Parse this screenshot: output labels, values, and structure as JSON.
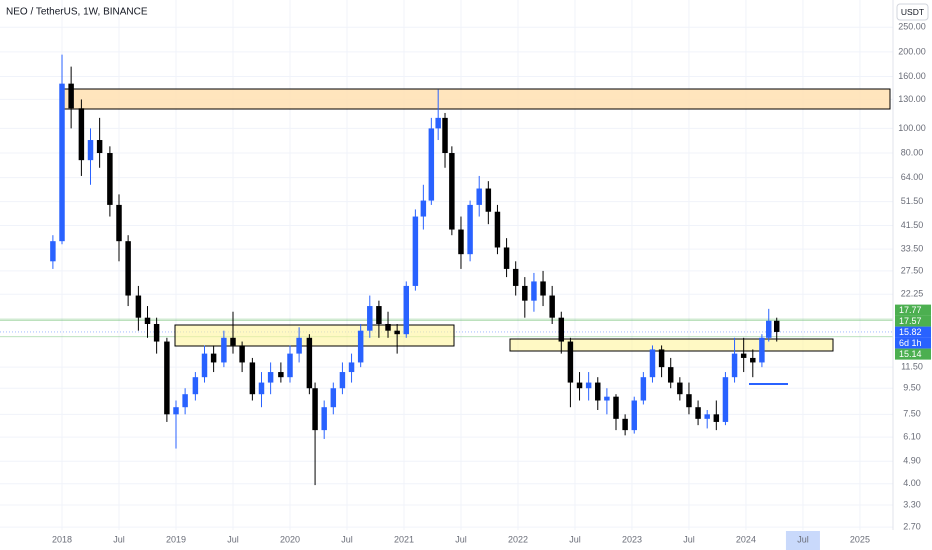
{
  "chart_data": {
    "type": "candlestick",
    "title": "NEO / TetherUS, 1W, BINANCE",
    "currency": "USDT",
    "log_scale": true,
    "grid": true,
    "up_color": "#2962ff",
    "down_color": "#000000",
    "xlim": [
      2017.456,
      2025.29
    ],
    "ylim": [
      2.63,
      320
    ],
    "xticks": [
      2018,
      {
        "value": 2018.5,
        "label": "Jul"
      },
      2019,
      {
        "value": 2019.5,
        "label": "Jul"
      },
      2020,
      {
        "value": 2020.5,
        "label": "Jul"
      },
      2021,
      {
        "value": 2021.5,
        "label": "Jul"
      },
      2022,
      {
        "value": 2022.5,
        "label": "Jul"
      },
      2023,
      {
        "value": 2023.5,
        "label": "Jul"
      },
      2024,
      {
        "value": 2024.5,
        "label": "Jul"
      },
      2025
    ],
    "yticks": [
      {
        "value": 250,
        "label": "250.00"
      },
      {
        "value": 200,
        "label": "200.00"
      },
      {
        "value": 160,
        "label": "160.00"
      },
      {
        "value": 130,
        "label": "130.00"
      },
      {
        "value": 100,
        "label": "100.00"
      },
      {
        "value": 80,
        "label": "80.00"
      },
      {
        "value": 64,
        "label": "64.00"
      },
      {
        "value": 51.5,
        "label": "51.50"
      },
      {
        "value": 41.5,
        "label": "41.50"
      },
      {
        "value": 33.5,
        "label": "33.50"
      },
      {
        "value": 27.5,
        "label": "27.50"
      },
      {
        "value": 22.25,
        "label": "22.25"
      },
      {
        "value": 11.5,
        "label": "11.50"
      },
      {
        "value": 9.5,
        "label": "9.50"
      },
      {
        "value": 7.5,
        "label": "7.50"
      },
      {
        "value": 6.1,
        "label": "6.10"
      },
      {
        "value": 4.9,
        "label": "4.90"
      },
      {
        "value": 4,
        "label": "4.00"
      },
      {
        "value": 3.3,
        "label": "3.30"
      },
      {
        "value": 2.7,
        "label": "2.70"
      }
    ],
    "price_tags": [
      {
        "value": 17.77,
        "color": "#4caf50"
      },
      {
        "value": 17.57,
        "color": "#4caf50"
      },
      {
        "value": 15.82,
        "color": "#2962ff"
      },
      {
        "text": "6d 1h",
        "color": "#2962ff"
      },
      {
        "value": 15.14,
        "color": "#4caf50"
      }
    ],
    "x": [
      2017.92,
      2018.0,
      2018.08,
      2018.17,
      2018.25,
      2018.33,
      2018.42,
      2018.5,
      2018.58,
      2018.67,
      2018.75,
      2018.83,
      2018.92,
      2019.0,
      2019.08,
      2019.17,
      2019.25,
      2019.33,
      2019.42,
      2019.5,
      2019.58,
      2019.67,
      2019.75,
      2019.83,
      2019.92,
      2020.0,
      2020.08,
      2020.17,
      2020.22,
      2020.3,
      2020.38,
      2020.46,
      2020.54,
      2020.62,
      2020.7,
      2020.78,
      2020.86,
      2020.94,
      2021.02,
      2021.1,
      2021.17,
      2021.24,
      2021.3,
      2021.36,
      2021.42,
      2021.5,
      2021.58,
      2021.66,
      2021.74,
      2021.82,
      2021.9,
      2021.98,
      2022.06,
      2022.14,
      2022.22,
      2022.3,
      2022.38,
      2022.46,
      2022.54,
      2022.62,
      2022.7,
      2022.78,
      2022.86,
      2022.94,
      2023.02,
      2023.1,
      2023.18,
      2023.26,
      2023.34,
      2023.42,
      2023.5,
      2023.58,
      2023.66,
      2023.74,
      2023.82,
      2023.9,
      2023.98,
      2024.06,
      2024.14,
      2024.2,
      2024.27
    ],
    "open": [
      30,
      36,
      150,
      120,
      75,
      90,
      80,
      50,
      36,
      22,
      18,
      17,
      14.5,
      7.5,
      8,
      9,
      10.5,
      13,
      12,
      15,
      14,
      12,
      9,
      10,
      11,
      10.5,
      13,
      15,
      9.5,
      6.5,
      8,
      9.5,
      11,
      12,
      16,
      20,
      17,
      16,
      15.5,
      24,
      45,
      52,
      100,
      110,
      80,
      40,
      32,
      50,
      58,
      47,
      34,
      28,
      24,
      21,
      25,
      22,
      18,
      14.5,
      10,
      9.5,
      10,
      8.5,
      8.8,
      7.2,
      6.5,
      8.5,
      10.5,
      13.5,
      11.5,
      10,
      9,
      8,
      7.2,
      7.5,
      7,
      10.5,
      13,
      12.5,
      12,
      15,
      17.5
    ],
    "high": [
      38,
      195,
      175,
      130,
      100,
      110,
      85,
      55,
      38,
      24,
      20,
      18,
      15,
      8.5,
      9.5,
      11,
      14,
      14,
      16,
      19,
      14.5,
      12.5,
      11,
      12,
      12,
      14,
      16.5,
      15.5,
      10,
      8.5,
      10,
      12,
      13,
      17,
      22,
      21,
      19,
      17,
      25,
      48,
      60,
      110,
      142,
      115,
      85,
      45,
      52,
      65,
      62,
      50,
      37,
      30,
      26,
      27,
      27.5,
      24,
      19,
      15,
      11,
      11,
      10.5,
      9.5,
      9,
      7.5,
      8.8,
      11,
      14,
      14,
      12.5,
      10.5,
      10,
      8.5,
      7.8,
      8.5,
      11,
      15,
      15,
      13.5,
      15.5,
      19.5,
      18
    ],
    "low": [
      28,
      35,
      100,
      65,
      60,
      70,
      45,
      30,
      20,
      16,
      15,
      13,
      7,
      5.5,
      7.5,
      8.5,
      10,
      11,
      11.5,
      13,
      11,
      8.5,
      8,
      9,
      10,
      10,
      12,
      9,
      3.95,
      6,
      7.5,
      9,
      10,
      11.5,
      15,
      15,
      15,
      13,
      15,
      23,
      40,
      50,
      90,
      70,
      38,
      28,
      30,
      45,
      42,
      32,
      26,
      22,
      18,
      19,
      20,
      17,
      13,
      8,
      8.5,
      8.5,
      7.8,
      7.5,
      6.5,
      6.2,
      6.3,
      8.2,
      10,
      10.5,
      9.5,
      8.5,
      7.5,
      6.8,
      6.6,
      6.5,
      6.8,
      10,
      11,
      10.5,
      11.5,
      14.5,
      14.5
    ],
    "close": [
      36,
      150,
      120,
      75,
      90,
      80,
      50,
      36,
      22,
      18,
      17,
      14.5,
      7.5,
      8,
      9,
      10.5,
      13,
      12,
      15,
      14,
      12,
      9,
      10,
      11,
      10.5,
      13,
      15,
      9.5,
      6.5,
      8,
      9.5,
      11,
      12,
      16,
      20,
      17,
      16,
      15.5,
      24,
      45,
      52,
      100,
      110,
      80,
      40,
      32,
      50,
      58,
      47,
      34,
      28,
      24,
      21,
      25,
      22,
      18,
      14.5,
      10,
      9.5,
      10,
      8.5,
      8.8,
      7.2,
      6.5,
      8.5,
      10.5,
      13.5,
      11.5,
      10,
      9,
      8,
      7.2,
      7.5,
      7,
      10.5,
      13,
      12.5,
      12,
      15,
      17.5,
      15.82
    ]
  }
}
